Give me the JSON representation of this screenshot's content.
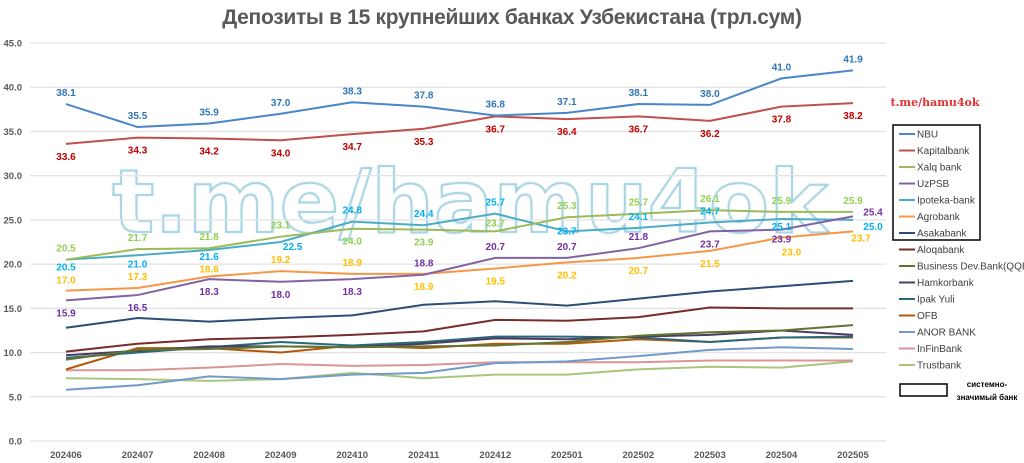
{
  "chart_data": {
    "type": "line",
    "title": "Депозиты в 15 крупнейших банках Узбекистана (трл.сум)",
    "xlabel": "",
    "ylabel": "",
    "ylim": [
      0,
      45
    ],
    "yticks": [
      "0.0",
      "5.0",
      "10.0",
      "15.0",
      "20.0",
      "25.0",
      "30.0",
      "35.0",
      "40.0",
      "45.0"
    ],
    "grid": true,
    "legend_position": "right",
    "categories": [
      "202406",
      "202407",
      "202408",
      "202409",
      "202410",
      "202411",
      "202412",
      "202501",
      "202502",
      "202503",
      "202504",
      "202505"
    ],
    "series": [
      {
        "name": "NBU",
        "color": "#4a86c8",
        "label_color": "#2e75b6",
        "labeled": true,
        "values": [
          38.1,
          35.5,
          35.9,
          37.0,
          38.3,
          37.8,
          36.8,
          37.1,
          38.1,
          38.0,
          41.0,
          41.9
        ]
      },
      {
        "name": "Kapitalbank",
        "color": "#c0504d",
        "label_color": "#c00000",
        "labeled": true,
        "values": [
          33.6,
          34.3,
          34.2,
          34.0,
          34.7,
          35.3,
          36.7,
          36.4,
          36.7,
          36.2,
          37.8,
          38.2
        ]
      },
      {
        "name": "Xalq bank",
        "color": "#9bbb59",
        "label_color": "#92d050",
        "labeled": true,
        "values": [
          20.5,
          21.7,
          21.8,
          23.1,
          24.0,
          23.9,
          23.7,
          25.3,
          25.7,
          26.1,
          25.9,
          25.9
        ]
      },
      {
        "name": "UzPSB",
        "color": "#8064a2",
        "label_color": "#7030a0",
        "labeled": true,
        "values": [
          15.9,
          16.5,
          18.3,
          18.0,
          18.3,
          18.8,
          20.7,
          20.7,
          21.8,
          23.7,
          23.9,
          25.4
        ]
      },
      {
        "name": "Ipoteka-bank",
        "color": "#4bacc6",
        "label_color": "#00b0f0",
        "labeled": true,
        "values": [
          20.5,
          21.0,
          21.6,
          22.5,
          24.8,
          24.4,
          25.7,
          23.7,
          24.1,
          24.7,
          25.1,
          25.0
        ]
      },
      {
        "name": "Agrobank",
        "color": "#f79646",
        "label_color": "#ffc000",
        "labeled": true,
        "values": [
          17.0,
          17.3,
          18.6,
          19.2,
          18.9,
          18.9,
          19.5,
          20.2,
          20.7,
          21.5,
          23.0,
          23.7
        ]
      },
      {
        "name": "Asakabank",
        "color": "#2c4d75",
        "labeled": false,
        "values": [
          12.8,
          13.9,
          13.5,
          13.9,
          14.2,
          15.4,
          15.8,
          15.3,
          16.1,
          16.9,
          17.5,
          18.1
        ]
      },
      {
        "name": "Aloqabank",
        "color": "#772c2a",
        "labeled": false,
        "values": [
          10.1,
          11.0,
          11.5,
          11.7,
          12.0,
          12.4,
          13.7,
          13.6,
          14.0,
          15.1,
          15.0,
          15.0
        ]
      },
      {
        "name": "Business Dev.Bank(QQB)",
        "color": "#5f7530",
        "labeled": false,
        "values": [
          9.2,
          10.3,
          10.4,
          10.7,
          10.6,
          10.7,
          10.8,
          11.2,
          11.9,
          12.3,
          12.5,
          13.1
        ]
      },
      {
        "name": "Hamkorbank",
        "color": "#4d3b62",
        "labeled": false,
        "values": [
          9.7,
          10.2,
          10.7,
          10.7,
          10.6,
          11.0,
          11.6,
          11.5,
          11.8,
          12.0,
          12.5,
          12.0
        ]
      },
      {
        "name": "Ipak Yuli",
        "color": "#276a7c",
        "labeled": false,
        "values": [
          9.4,
          10.0,
          10.6,
          11.2,
          10.8,
          11.2,
          11.8,
          11.8,
          11.7,
          11.2,
          11.7,
          11.8
        ]
      },
      {
        "name": "OFB",
        "color": "#b65708",
        "labeled": false,
        "values": [
          8.1,
          10.5,
          10.5,
          10.0,
          10.8,
          10.5,
          11.0,
          11.0,
          11.5,
          11.2,
          11.7,
          11.7
        ]
      },
      {
        "name": "ANOR BANK",
        "color": "#729aca",
        "labeled": false,
        "values": [
          5.8,
          6.3,
          7.3,
          7.0,
          7.5,
          7.7,
          8.8,
          9.0,
          9.6,
          10.3,
          10.6,
          10.4
        ]
      },
      {
        "name": "InFinBank",
        "color": "#d99694",
        "labeled": false,
        "values": [
          8.0,
          8.0,
          8.3,
          8.7,
          8.5,
          8.6,
          8.9,
          8.9,
          8.9,
          9.1,
          9.1,
          9.1
        ]
      },
      {
        "name": "Trustbank",
        "color": "#a9c77a",
        "labeled": false,
        "values": [
          7.1,
          7.0,
          6.8,
          7.0,
          7.7,
          7.1,
          7.5,
          7.5,
          8.1,
          8.4,
          8.3,
          9.0
        ]
      }
    ],
    "legend_note": "системно-значимый банк",
    "watermark": "t.me/hamu4ok",
    "channel_tag": "t.me/hamu4ok"
  }
}
